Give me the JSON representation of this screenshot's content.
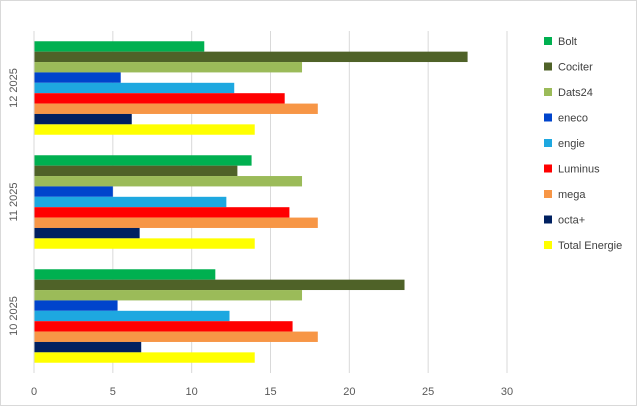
{
  "chart_data": {
    "type": "bar",
    "orientation": "horizontal",
    "categories": [
      "12 2025",
      "11 2025",
      "10 2025"
    ],
    "series": [
      {
        "name": "Bolt",
        "color": "#00b050",
        "values": [
          10.8,
          13.8,
          11.5
        ]
      },
      {
        "name": "Cociter",
        "color": "#4f6228",
        "values": [
          27.5,
          12.9,
          23.5
        ]
      },
      {
        "name": "Dats24",
        "color": "#9bbb59",
        "values": [
          17.0,
          17.0,
          17.0
        ]
      },
      {
        "name": "eneco",
        "color": "#0044cc",
        "values": [
          5.5,
          5.0,
          5.3
        ]
      },
      {
        "name": "engie",
        "color": "#1ea8e0",
        "values": [
          12.7,
          12.2,
          12.4
        ]
      },
      {
        "name": "Luminus",
        "color": "#ff0000",
        "values": [
          15.9,
          16.2,
          16.4
        ]
      },
      {
        "name": "mega",
        "color": "#f79646",
        "values": [
          18.0,
          18.0,
          18.0
        ]
      },
      {
        "name": "octa+",
        "color": "#002060",
        "values": [
          6.2,
          6.7,
          6.8
        ]
      },
      {
        "name": "Total Energie",
        "color": "#ffff00",
        "values": [
          14.0,
          14.0,
          14.0
        ]
      }
    ],
    "xlim": [
      0,
      30
    ],
    "xticks": [
      "0",
      "5",
      "10",
      "15",
      "20",
      "25",
      "30"
    ],
    "xlabel": "",
    "ylabel": "",
    "title": "",
    "grid": "vertical",
    "legend_position": "right"
  }
}
